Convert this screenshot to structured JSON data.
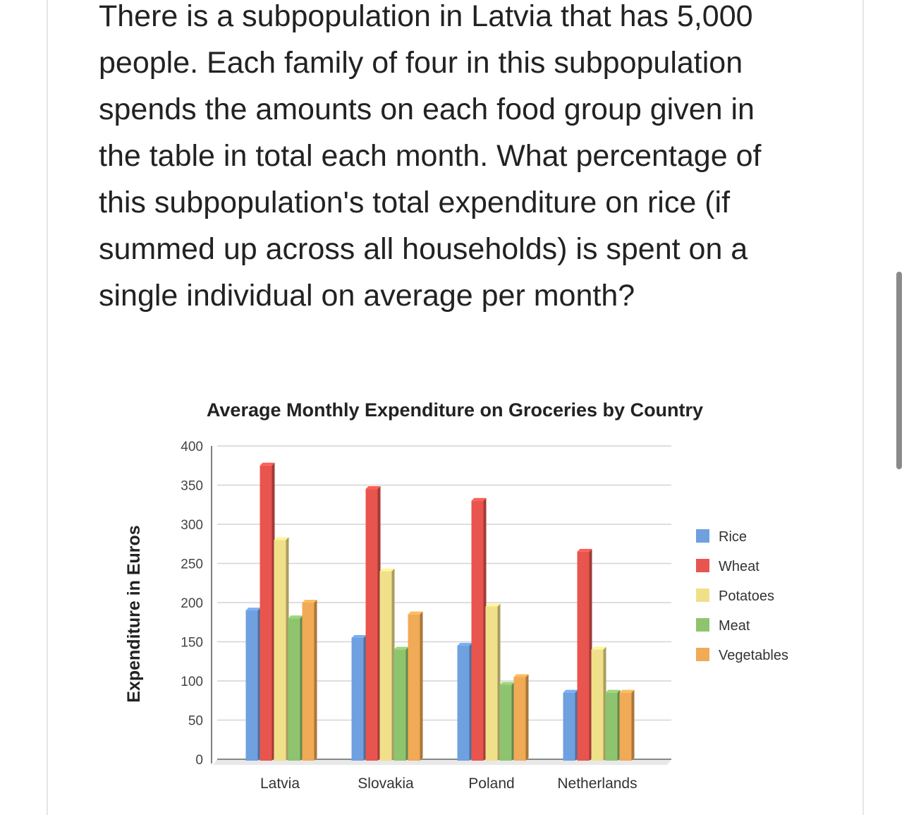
{
  "question": "There is a subpopulation in Latvia that has 5,000 people. Each family of four in this subpopulation spends the amounts on each food group given in the table in total each month. What percentage of this subpopulation's total expenditure on rice (if summed up across all households) is spent on a single individual on average per month?",
  "chart_data": {
    "type": "bar",
    "title": "Average Monthly Expenditure on Groceries by Country",
    "xlabel": "",
    "ylabel": "Expenditure in Euros",
    "ylim": [
      0,
      400
    ],
    "yticks": [
      0,
      50,
      100,
      150,
      200,
      250,
      300,
      350,
      400
    ],
    "grid": true,
    "legend_position": "right",
    "style": "3d-bars",
    "categories": [
      "Latvia",
      "Slovakia",
      "Poland",
      "Netherlands"
    ],
    "series": [
      {
        "name": "Rice",
        "color": "#6fa0e0",
        "values": [
          190,
          155,
          145,
          85
        ]
      },
      {
        "name": "Wheat",
        "color": "#e8554e",
        "values": [
          375,
          345,
          330,
          265
        ]
      },
      {
        "name": "Potatoes",
        "color": "#f1e08a",
        "values": [
          280,
          240,
          195,
          140
        ]
      },
      {
        "name": "Meat",
        "color": "#8fc46f",
        "values": [
          180,
          140,
          95,
          85
        ]
      },
      {
        "name": "Vegetables",
        "color": "#f1aa55",
        "values": [
          200,
          185,
          105,
          85
        ]
      }
    ]
  }
}
